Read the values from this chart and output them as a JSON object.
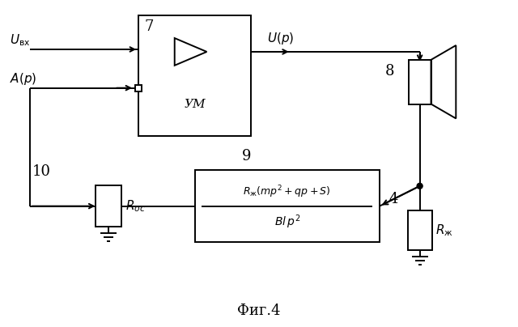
{
  "bg_color": "#ffffff",
  "title": "Фиг.4",
  "title_fontsize": 13,
  "fig_width": 6.4,
  "fig_height": 4.04,
  "dpi": 100,
  "lw": 1.4
}
